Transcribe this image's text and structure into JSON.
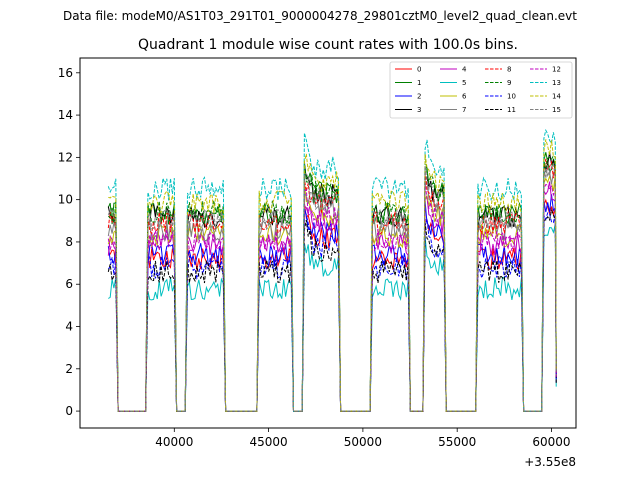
{
  "suptitle": "Data file: modeM0/AS1T03_291T01_9000004278_29801cztM0_level2_quad_clean.evt",
  "chart_data": {
    "type": "line",
    "title": "Quadrant 1 module wise count rates with 100.0s bins.",
    "xlabel": "",
    "ylabel": "",
    "x_offset_label": "+3.55e8",
    "xlim": [
      35000,
      61300
    ],
    "ylim": [
      -0.8,
      16.7
    ],
    "x_ticks": [
      40000,
      45000,
      50000,
      55000,
      60000
    ],
    "x_tick_labels": [
      "40000",
      "45000",
      "50000",
      "55000",
      "60000"
    ],
    "y_ticks": [
      0,
      2,
      4,
      6,
      8,
      10,
      12,
      14,
      16
    ],
    "y_tick_labels": [
      "0",
      "2",
      "4",
      "6",
      "8",
      "10",
      "12",
      "14",
      "16"
    ],
    "legend_position": "top-right",
    "segments": [
      [
        36500,
        36900
      ],
      [
        38600,
        40000
      ],
      [
        40700,
        42600
      ],
      [
        44500,
        46200
      ],
      [
        46900,
        48700
      ],
      [
        50500,
        52400
      ],
      [
        53300,
        54300
      ],
      [
        56100,
        58400
      ],
      [
        59600,
        60200
      ]
    ],
    "segment_end": 60200,
    "series": [
      {
        "name": "0",
        "color": "#ff0000",
        "dash": "solid",
        "level": 7.2
      },
      {
        "name": "1",
        "color": "#008000",
        "dash": "solid",
        "level": 9.3
      },
      {
        "name": "2",
        "color": "#0000ff",
        "dash": "solid",
        "level": 7.4
      },
      {
        "name": "3",
        "color": "#000000",
        "dash": "solid",
        "level": 9.2
      },
      {
        "name": "4",
        "color": "#bf00bf",
        "dash": "solid",
        "level": 7.9
      },
      {
        "name": "5",
        "color": "#00bfbf",
        "dash": "solid",
        "level": 5.8
      },
      {
        "name": "6",
        "color": "#bfbf00",
        "dash": "solid",
        "level": 8.3
      },
      {
        "name": "7",
        "color": "#808080",
        "dash": "solid",
        "level": 8.6
      },
      {
        "name": "8",
        "color": "#ff0000",
        "dash": "dashed",
        "level": 8.9
      },
      {
        "name": "9",
        "color": "#008000",
        "dash": "dashed",
        "level": 9.4
      },
      {
        "name": "10",
        "color": "#0000ff",
        "dash": "dashed",
        "level": 6.8
      },
      {
        "name": "11",
        "color": "#000000",
        "dash": "dashed",
        "level": 6.6
      },
      {
        "name": "12",
        "color": "#bf00bf",
        "dash": "dashed",
        "level": 8.1
      },
      {
        "name": "13",
        "color": "#00bfbf",
        "dash": "dashed",
        "level": 10.5
      },
      {
        "name": "14",
        "color": "#bfbf00",
        "dash": "dashed",
        "level": 9.9
      },
      {
        "name": "15",
        "color": "#808080",
        "dash": "dashed",
        "level": 9.0
      }
    ]
  }
}
